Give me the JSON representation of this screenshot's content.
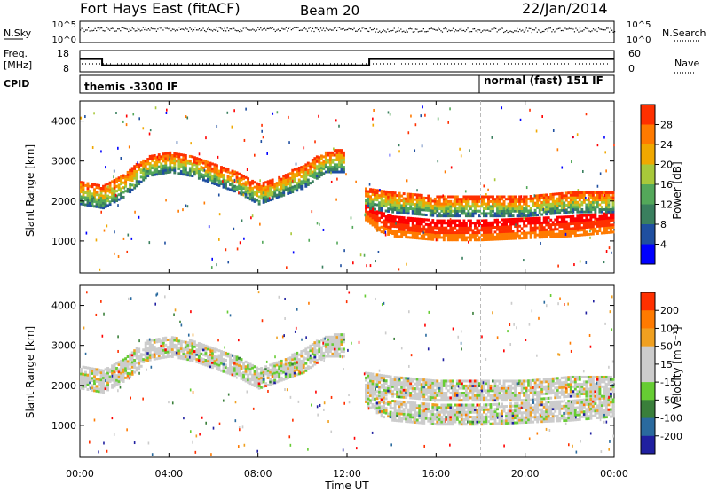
{
  "header": {
    "title": "Fort Hays East (fitACF)",
    "beam": "Beam 20",
    "date": "22/Jan/2014"
  },
  "noise_panel": {
    "left_label": "N.Sky",
    "right_label": "N.Search",
    "left_ticks": [
      "10^5",
      "10^0"
    ],
    "right_ticks": [
      "10^5",
      "10^0"
    ]
  },
  "freq_panel": {
    "left_label_1": "Freq.",
    "left_label_2": "[MHz]",
    "right_label": "Nave",
    "left_ticks": [
      "18",
      "8"
    ],
    "right_ticks": [
      "60",
      "0"
    ],
    "freq_series": [
      {
        "t": 0.0,
        "value": 14
      },
      {
        "t": 1.0,
        "value": 11
      },
      {
        "t": 13.0,
        "value": 14
      },
      {
        "t": 24.0,
        "value": 14
      }
    ]
  },
  "cpid_panel": {
    "label": "CPID",
    "segments": [
      {
        "start": 0,
        "end": 18,
        "text": "themis -3300 IF"
      },
      {
        "start": 18,
        "end": 24,
        "text": "normal (fast) 151 IF"
      }
    ]
  },
  "colors": {
    "power": [
      "#0000ff",
      "#1f4fa0",
      "#3a7f5e",
      "#54a85a",
      "#a8c83a",
      "#f0a800",
      "#ff7a00",
      "#ff3000",
      "#ff0000"
    ],
    "velocity": [
      "#2020a0",
      "#2a6a9e",
      "#3a7f3a",
      "#66cc33",
      "#cccccc",
      "#cccccc",
      "#f0a020",
      "#ff7a00",
      "#ff3000",
      "#ff0000"
    ]
  },
  "chart_data": [
    {
      "type": "heatmap",
      "name": "power",
      "ylabel": "Slant Range [km]",
      "xlim": [
        0,
        24
      ],
      "ylim": [
        200,
        4500
      ],
      "yticks": [
        "1000",
        "2000",
        "3000",
        "4000"
      ],
      "colorbar_label": "Power [dB]",
      "colorbar_ticks": [
        "28",
        "24",
        "20",
        "16",
        "12",
        "8",
        "4"
      ],
      "colorbar_range": [
        0,
        32
      ],
      "echo_bands": [
        {
          "t_start": 0.0,
          "t_end": 11.8,
          "ranges": [
            [
              0,
              1900,
              2500
            ],
            [
              1,
              1800,
              2400
            ],
            [
              2,
              2100,
              2700
            ],
            [
              3,
              2600,
              3100
            ],
            [
              4,
              2700,
              3200
            ],
            [
              5,
              2600,
              3100
            ],
            [
              6,
              2400,
              2900
            ],
            [
              7,
              2200,
              2700
            ],
            [
              8,
              1900,
              2400
            ],
            [
              9,
              2100,
              2600
            ],
            [
              10,
              2300,
              2900
            ],
            [
              11,
              2700,
              3200
            ],
            [
              11.8,
              2700,
              3300
            ]
          ],
          "power_low": 12,
          "power_high": 20
        },
        {
          "t_start": 12.8,
          "t_end": 24.0,
          "ranges": [
            [
              12.8,
              1500,
              1900
            ],
            [
              13.5,
              1200,
              1700
            ],
            [
              14,
              1100,
              1600
            ],
            [
              16,
              1000,
              1500
            ],
            [
              18,
              1000,
              1500
            ],
            [
              20,
              1050,
              1550
            ],
            [
              22,
              1100,
              1600
            ],
            [
              24,
              1200,
              1700
            ]
          ],
          "power_low": 24,
          "power_high": 30
        },
        {
          "t_start": 12.8,
          "t_end": 24.0,
          "ranges": [
            [
              12.8,
              1800,
              2300
            ],
            [
              14,
              1700,
              2200
            ],
            [
              16,
              1600,
              2100
            ],
            [
              18,
              1600,
              2100
            ],
            [
              20,
              1600,
              2100
            ],
            [
              22,
              1700,
              2200
            ],
            [
              24,
              1700,
              2200
            ]
          ],
          "power_low": 14,
          "power_high": 22
        }
      ]
    },
    {
      "type": "heatmap",
      "name": "velocity",
      "ylabel": "Slant Range [km]",
      "xlabel": "Time UT",
      "xlim": [
        0,
        24
      ],
      "ylim": [
        200,
        4500
      ],
      "xticks": [
        "00:00",
        "04:00",
        "08:00",
        "12:00",
        "16:00",
        "20:00",
        "00:00"
      ],
      "yticks": [
        "1000",
        "2000",
        "3000",
        "4000"
      ],
      "colorbar_label": "Velocity [m s⁻¹]",
      "colorbar_ticks": [
        "200",
        "100",
        "50",
        "15",
        "-15",
        "-50",
        "-100",
        "-200"
      ],
      "colorbar_range": [
        -250,
        250
      ]
    }
  ]
}
